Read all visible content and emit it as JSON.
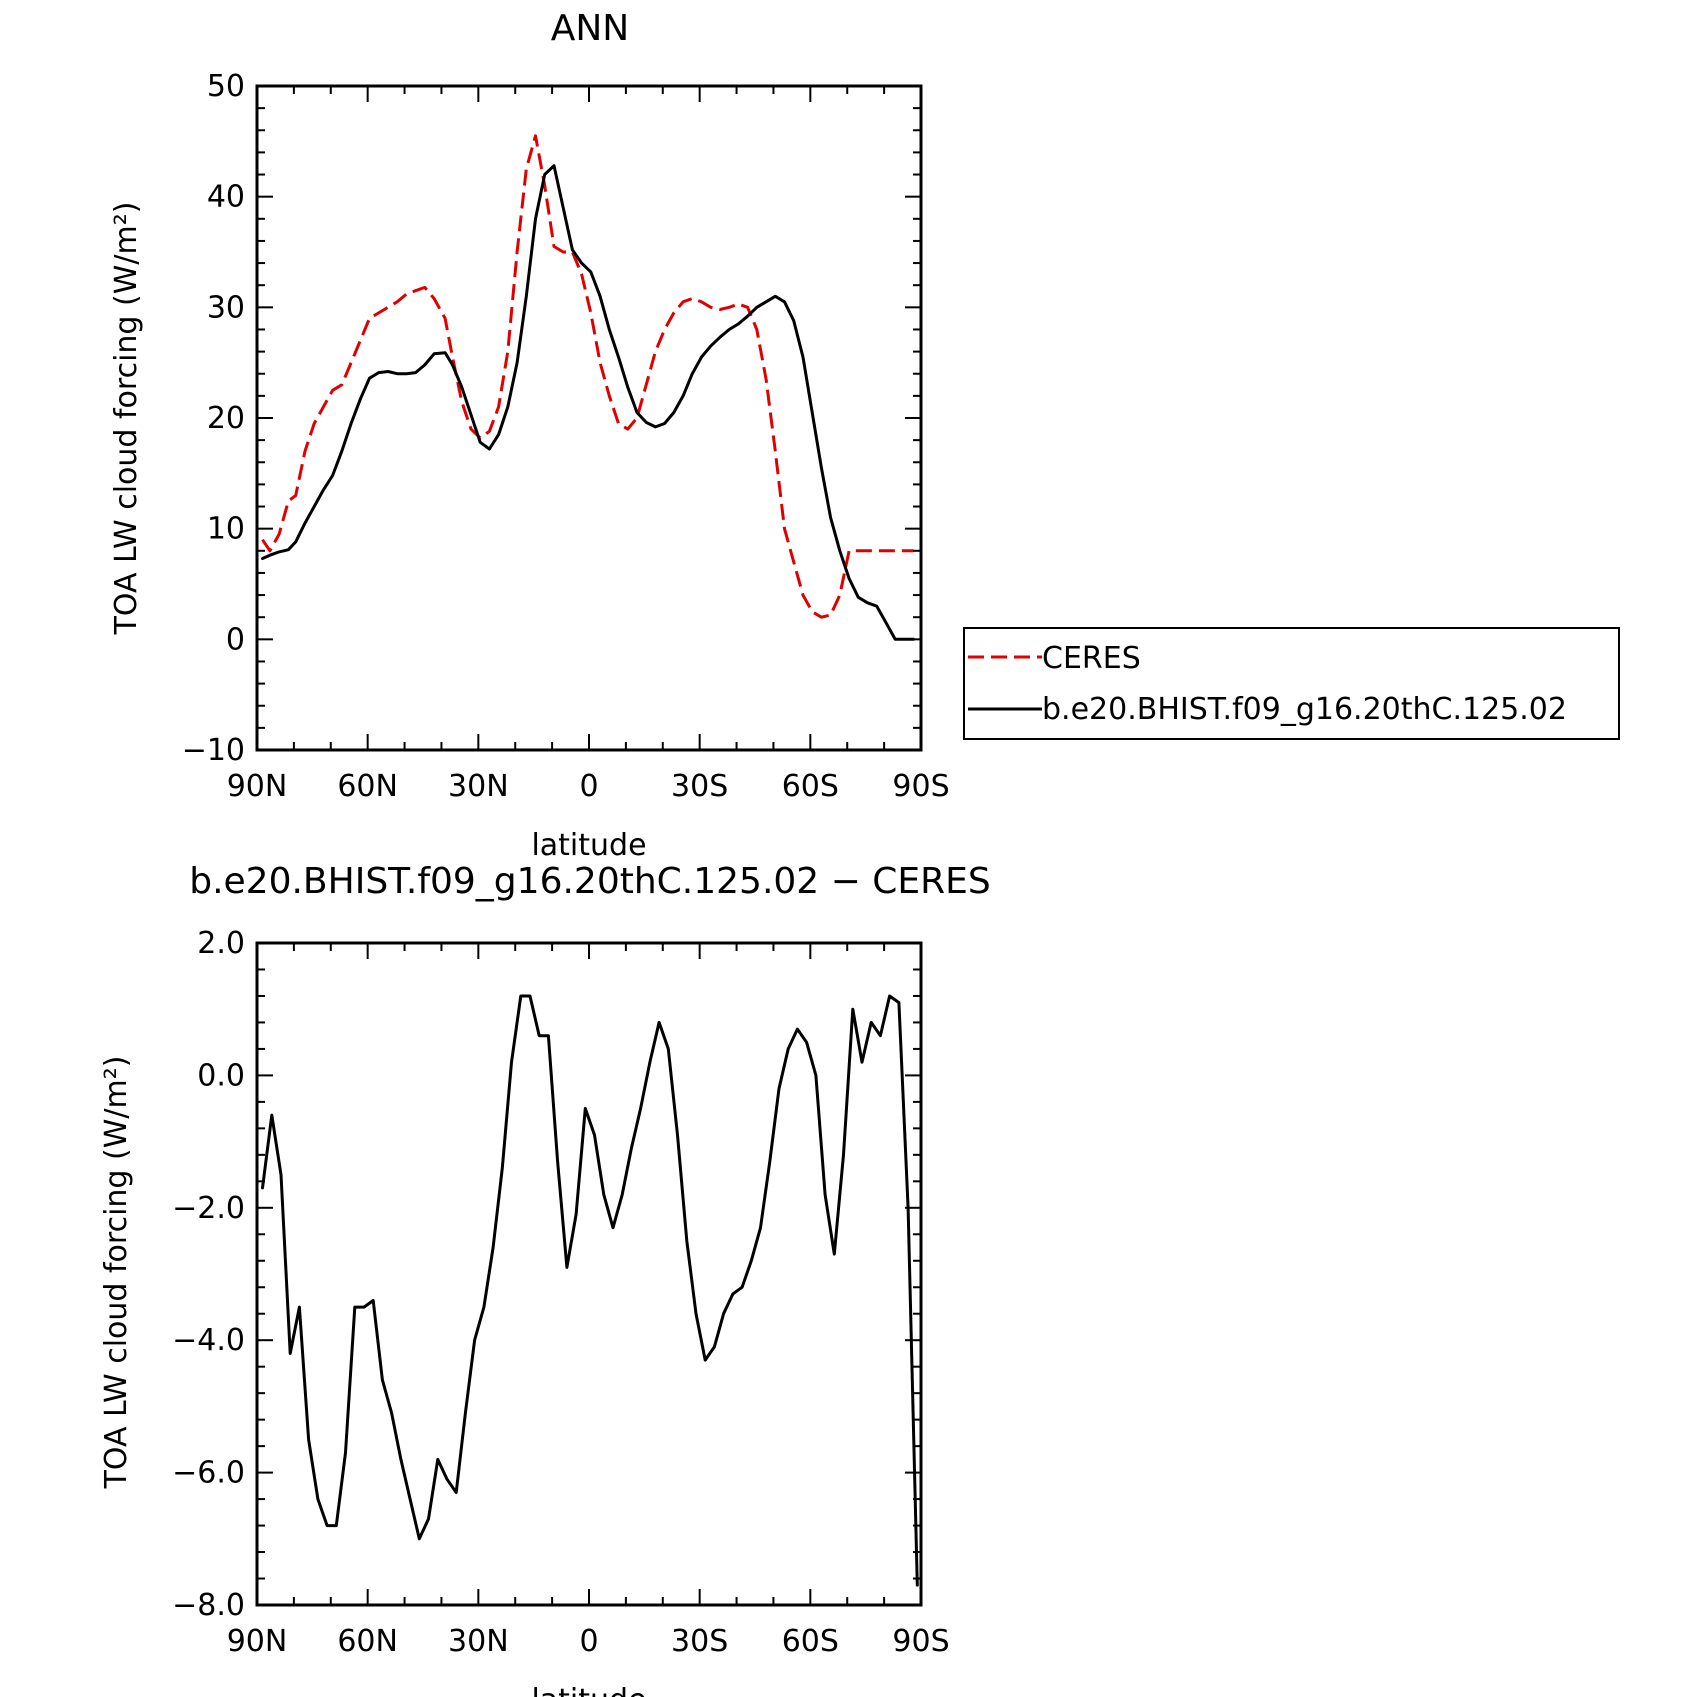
{
  "chart_data": [
    {
      "type": "line",
      "title": "ANN",
      "xlabel": "latitude",
      "ylabel": "TOA LW cloud forcing (W/m²)",
      "xlim": [
        90,
        -90
      ],
      "ylim": [
        -10,
        50
      ],
      "xticks": [
        {
          "value": 90,
          "label": "90N"
        },
        {
          "value": 60,
          "label": "60N"
        },
        {
          "value": 30,
          "label": "30N"
        },
        {
          "value": 0,
          "label": "0"
        },
        {
          "value": -30,
          "label": "30S"
        },
        {
          "value": -60,
          "label": "60S"
        },
        {
          "value": -90,
          "label": "90S"
        }
      ],
      "yticks": [
        {
          "value": 50,
          "label": "50"
        },
        {
          "value": 40,
          "label": "40"
        },
        {
          "value": 30,
          "label": "30"
        },
        {
          "value": 20,
          "label": "20"
        },
        {
          "value": 10,
          "label": "10"
        },
        {
          "value": 0,
          "label": "0"
        },
        {
          "value": -10,
          "label": "−10"
        }
      ],
      "legend_position": "right",
      "series": [
        {
          "name": "CERES",
          "color": "#e00000",
          "style": "dashed",
          "x": [
            88.5,
            86.5,
            84,
            81.5,
            79.5,
            77,
            74.5,
            72,
            69.5,
            67,
            64.5,
            62,
            59.5,
            57,
            54.5,
            52,
            49.5,
            47,
            44.5,
            42,
            39,
            37,
            34.5,
            32,
            29.5,
            27,
            24.5,
            22,
            19.5,
            17,
            14.5,
            12,
            9.5,
            7,
            4.5,
            2,
            -0.5,
            -3,
            -5.5,
            -8,
            -10.5,
            -13,
            -15.5,
            -18,
            -20.5,
            -23,
            -25.5,
            -28,
            -30.5,
            -33,
            -35.5,
            -38,
            -40.5,
            -43,
            -45.5,
            -48,
            -50.5,
            -53,
            -55.5,
            -58,
            -60.5,
            -63,
            -65.5,
            -68,
            -70.5,
            -73,
            -75.5,
            -78,
            -80.5,
            -83,
            -85.5,
            -88
          ],
          "y": [
            9.0,
            8.0,
            9.5,
            12.5,
            13.0,
            17.0,
            19.5,
            21.0,
            22.5,
            23.0,
            25.0,
            27.0,
            29.0,
            29.5,
            30.0,
            30.5,
            31.2,
            31.5,
            31.8,
            30.8,
            29.0,
            25.5,
            21.5,
            19.0,
            18.2,
            18.8,
            21.0,
            26.0,
            35.0,
            42.5,
            45.5,
            41.0,
            35.5,
            35.0,
            35.0,
            33.0,
            29.5,
            25.0,
            22.0,
            19.5,
            19.0,
            20.0,
            23.0,
            26.0,
            28.0,
            29.5,
            30.5,
            30.8,
            30.5,
            30.0,
            29.8,
            30.0,
            30.3,
            30.0,
            28.0,
            23.5,
            17.0,
            10.0,
            7.0,
            4.0,
            2.5,
            2.0,
            2.2,
            4.0,
            8.0,
            8.0,
            8.0,
            8.0,
            8.0,
            8.0,
            8.0,
            8.0
          ]
        },
        {
          "name": "b.e20.BHIST.f09_g16.20thC.125.02",
          "color": "#000000",
          "style": "solid",
          "x": [
            88.5,
            86.5,
            84,
            81.5,
            79.5,
            77,
            74.5,
            72,
            69.5,
            67,
            64.5,
            62,
            59.5,
            57,
            54.5,
            52,
            49.5,
            47,
            44.5,
            42,
            39,
            37,
            34.5,
            32,
            29.5,
            27,
            24.5,
            22,
            19.5,
            17,
            14.5,
            12,
            9.5,
            7,
            4.5,
            2,
            -0.5,
            -3,
            -5.5,
            -8,
            -10.5,
            -13,
            -15.5,
            -18,
            -20.5,
            -23,
            -25.5,
            -28,
            -30.5,
            -33,
            -35.5,
            -38,
            -40.5,
            -43,
            -45.5,
            -48,
            -50.5,
            -53,
            -55.5,
            -58,
            -60.5,
            -63,
            -65.5,
            -68,
            -70.5,
            -73,
            -75.5,
            -78,
            -80.5,
            -83,
            -85.5,
            -88
          ],
          "y": [
            7.3,
            7.6,
            7.9,
            8.1,
            8.8,
            10.5,
            12.0,
            13.5,
            14.8,
            17.0,
            19.5,
            21.7,
            23.6,
            24.1,
            24.2,
            24.0,
            24.0,
            24.1,
            24.8,
            25.8,
            25.9,
            24.8,
            22.8,
            20.3,
            17.8,
            17.2,
            18.5,
            21.0,
            25.0,
            31.0,
            38.0,
            42.0,
            42.8,
            39.0,
            35.2,
            34.0,
            33.2,
            31.0,
            28.0,
            25.5,
            22.8,
            20.5,
            19.6,
            19.2,
            19.5,
            20.5,
            22.0,
            24.0,
            25.5,
            26.5,
            27.3,
            28.0,
            28.5,
            29.2,
            30.0,
            30.5,
            31.0,
            30.5,
            28.8,
            25.5,
            20.5,
            15.5,
            11.0,
            8.0,
            5.5,
            3.8,
            3.3,
            3.0,
            1.5,
            0.0,
            0.0,
            0.0
          ]
        }
      ]
    },
    {
      "type": "line",
      "title": "b.e20.BHIST.f09_g16.20thC.125.02 − CERES",
      "xlabel": "latitude",
      "ylabel": "TOA LW cloud forcing (W/m²)",
      "xlim": [
        90,
        -90
      ],
      "ylim": [
        -8.0,
        2.0
      ],
      "xticks": [
        {
          "value": 90,
          "label": "90N"
        },
        {
          "value": 60,
          "label": "60N"
        },
        {
          "value": 30,
          "label": "30N"
        },
        {
          "value": 0,
          "label": "0"
        },
        {
          "value": -30,
          "label": "30S"
        },
        {
          "value": -60,
          "label": "60S"
        },
        {
          "value": -90,
          "label": "90S"
        }
      ],
      "yticks": [
        {
          "value": 2.0,
          "label": "2.0"
        },
        {
          "value": 0.0,
          "label": "0.0"
        },
        {
          "value": -2.0,
          "label": "−2.0"
        },
        {
          "value": -4.0,
          "label": "−4.0"
        },
        {
          "value": -6.0,
          "label": "−6.0"
        },
        {
          "value": -8.0,
          "label": "−8.0"
        }
      ],
      "series": [
        {
          "color": "#000000",
          "style": "solid",
          "x": [
            88.5,
            86,
            83.5,
            81,
            78.5,
            76,
            73.5,
            71,
            68.5,
            66,
            63.5,
            61,
            58.5,
            56,
            53.5,
            51,
            48.5,
            46,
            43.5,
            41,
            38.5,
            36,
            33.5,
            31,
            28.5,
            26,
            23.5,
            21,
            18.5,
            16,
            13.5,
            11,
            8.5,
            6,
            3.5,
            1,
            -1.5,
            -4,
            -6.5,
            -9,
            -11.5,
            -14,
            -16.5,
            -19,
            -21.5,
            -24,
            -26.5,
            -29,
            -31.5,
            -34,
            -36.5,
            -39,
            -41.5,
            -44,
            -46.5,
            -49,
            -51.5,
            -54,
            -56.5,
            -59,
            -61.5,
            -64,
            -66.5,
            -69,
            -71.5,
            -74,
            -76.5,
            -79,
            -81.5,
            -84,
            -86.5,
            -89
          ],
          "y": [
            -1.7,
            -0.6,
            -1.5,
            -4.2,
            -3.5,
            -5.5,
            -6.4,
            -6.8,
            -6.8,
            -5.7,
            -3.5,
            -3.5,
            -3.4,
            -4.6,
            -5.1,
            -5.8,
            -6.4,
            -7.0,
            -6.7,
            -5.8,
            -6.1,
            -6.3,
            -5.1,
            -4.0,
            -3.5,
            -2.6,
            -1.4,
            0.2,
            1.2,
            1.2,
            0.6,
            0.6,
            -1.3,
            -2.9,
            -2.1,
            -0.5,
            -0.9,
            -1.8,
            -2.3,
            -1.8,
            -1.1,
            -0.5,
            0.2,
            0.8,
            0.4,
            -0.9,
            -2.5,
            -3.6,
            -4.3,
            -4.1,
            -3.6,
            -3.3,
            -3.2,
            -2.8,
            -2.3,
            -1.3,
            -0.2,
            0.4,
            0.7,
            0.5,
            0.0,
            -1.8,
            -2.7,
            -1.2,
            1.0,
            0.2,
            0.8,
            0.6,
            1.2,
            1.1,
            -2.0,
            -7.7
          ]
        }
      ]
    }
  ]
}
